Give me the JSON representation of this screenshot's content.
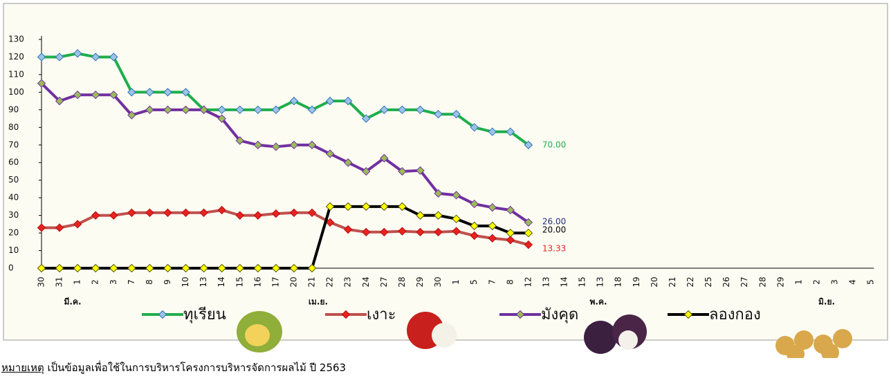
{
  "chart_data": {
    "type": "line",
    "categories": [
      "30",
      "31",
      "1",
      "2",
      "3",
      "7",
      "8",
      "9",
      "10",
      "13",
      "14",
      "15",
      "16",
      "17",
      "20",
      "21",
      "22",
      "23",
      "24",
      "27",
      "28",
      "29",
      "30",
      "1",
      "5",
      "7",
      "8",
      "12",
      "13",
      "14",
      "15",
      "13",
      "18",
      "19",
      "20",
      "21",
      "22",
      "25",
      "26",
      "27",
      "28",
      "29",
      "1",
      "2",
      "3",
      "4",
      "5"
    ],
    "month_labels": [
      "มี.ค.",
      "เม.ย.",
      "พ.ค.",
      "มิ.ย."
    ],
    "ylim": [
      0,
      130
    ],
    "yticks": [
      0,
      10,
      20,
      30,
      40,
      50,
      60,
      70,
      80,
      90,
      100,
      110,
      120,
      130
    ],
    "grid": false,
    "series": [
      {
        "name": "ทุเรียน",
        "color": "#1fae4b",
        "marker_color": "#9dc3e6",
        "marker_edge": "#2e75b6",
        "label_color": "#1fae4b",
        "values": [
          120,
          120,
          122,
          120,
          120,
          100,
          100,
          100,
          100,
          90,
          90,
          90,
          90,
          90,
          95,
          90,
          95,
          95,
          85,
          90,
          90,
          90,
          87.5,
          87.5,
          80,
          77.5,
          77.5,
          70,
          null,
          null,
          null,
          null,
          null,
          null,
          null,
          null,
          null,
          null,
          null,
          null,
          null,
          null,
          null,
          null,
          null,
          null,
          null
        ],
        "value_labels": [
          null,
          null,
          null,
          null,
          null,
          null,
          null,
          null,
          null,
          null,
          null,
          null,
          null,
          null,
          null,
          null,
          null,
          null,
          null,
          null,
          null,
          null,
          null,
          null,
          null,
          null,
          null,
          "70.00",
          null,
          null,
          null,
          null,
          null,
          null,
          null,
          null,
          null,
          null,
          null,
          null,
          null,
          null,
          null,
          null,
          null,
          null,
          null
        ]
      },
      {
        "name": "เงาะ",
        "color": "#c0504d",
        "marker_color": "#e8231f",
        "marker_edge": "#b01010",
        "label_color": "#e8231f",
        "values": [
          23,
          23,
          25,
          30,
          30,
          31.5,
          31.5,
          31.5,
          31.5,
          31.5,
          33,
          30,
          30,
          31,
          31.5,
          31.5,
          26,
          22,
          20.5,
          20.5,
          21,
          20.5,
          20.5,
          21,
          18.5,
          17,
          16,
          13.33,
          null,
          null,
          null,
          null,
          null,
          null,
          null,
          null,
          null,
          null,
          null,
          null,
          null,
          null,
          null,
          null,
          null,
          null,
          null
        ],
        "value_labels": [
          null,
          null,
          null,
          null,
          null,
          null,
          null,
          null,
          null,
          null,
          null,
          null,
          null,
          null,
          null,
          null,
          null,
          null,
          null,
          null,
          null,
          null,
          null,
          null,
          null,
          null,
          null,
          "13.33",
          null,
          null,
          null,
          null,
          null,
          null,
          null,
          null,
          null,
          null,
          null,
          null,
          null,
          null,
          null,
          null,
          null,
          null,
          null
        ]
      },
      {
        "name": "มังคุด",
        "color": "#7030a0",
        "marker_color": "#9bbb59",
        "marker_edge": "#7030a0",
        "label_color": "#1f2e78",
        "values": [
          105,
          95,
          98.5,
          98.5,
          98.5,
          87,
          90,
          90,
          90,
          90,
          85,
          72.5,
          70,
          69,
          70,
          70,
          65,
          60,
          55,
          62.5,
          55,
          55.5,
          42.5,
          41.5,
          36.5,
          34.5,
          33,
          26,
          null,
          null,
          null,
          null,
          null,
          null,
          null,
          null,
          null,
          null,
          null,
          null,
          null,
          null,
          null,
          null,
          null,
          null,
          null
        ],
        "value_labels": [
          null,
          null,
          null,
          null,
          null,
          null,
          null,
          null,
          null,
          null,
          null,
          null,
          null,
          null,
          null,
          null,
          null,
          null,
          null,
          null,
          null,
          null,
          null,
          null,
          null,
          null,
          null,
          "26.00",
          null,
          null,
          null,
          null,
          null,
          null,
          null,
          null,
          null,
          null,
          null,
          null,
          null,
          null,
          null,
          null,
          null,
          null,
          null
        ]
      },
      {
        "name": "ลองกอง",
        "color": "#000000",
        "marker_color": "#ffff00",
        "marker_edge": "#555500",
        "label_color": "#000000",
        "values": [
          0,
          0,
          0,
          0,
          0,
          0,
          0,
          0,
          0,
          0,
          0,
          0,
          0,
          0,
          0,
          0,
          35,
          35,
          35,
          35,
          35,
          30,
          30,
          28,
          24,
          24,
          20,
          20,
          null,
          null,
          null,
          null,
          null,
          null,
          null,
          null,
          null,
          null,
          null,
          null,
          null,
          null,
          null,
          null,
          null,
          null,
          null
        ],
        "value_labels": [
          null,
          null,
          null,
          null,
          null,
          null,
          null,
          null,
          null,
          null,
          null,
          null,
          null,
          null,
          null,
          null,
          null,
          null,
          null,
          null,
          null,
          null,
          null,
          null,
          null,
          null,
          null,
          "20.00",
          null,
          null,
          null,
          null,
          null,
          null,
          null,
          null,
          null,
          null,
          null,
          null,
          null,
          null,
          null,
          null,
          null,
          null,
          null
        ]
      }
    ]
  },
  "note_label": "หมายเหตุ",
  "note_text": " เป็นข้อมูลเพื่อใช้ในการบริหารโครงการบริหารจัดการผลไม้ ปี 2563"
}
